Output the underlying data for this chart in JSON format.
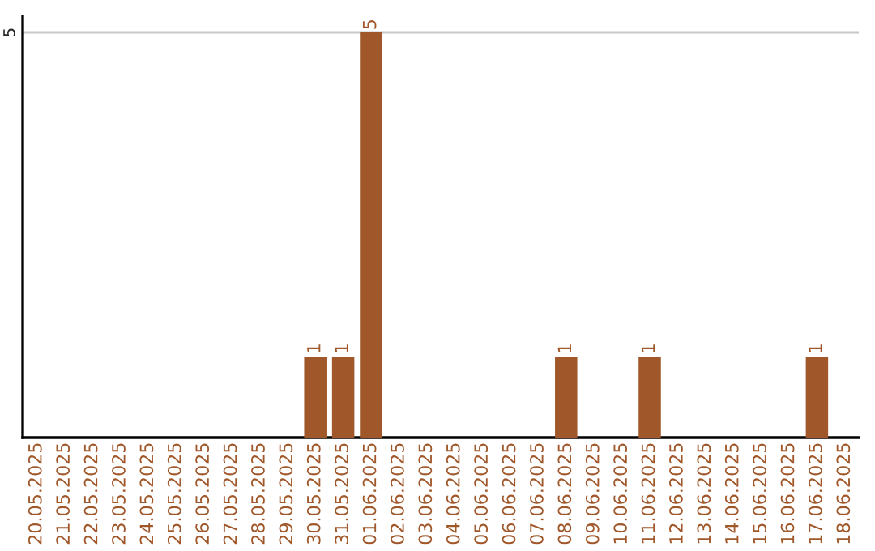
{
  "chart_data": {
    "type": "bar",
    "categories": [
      "20.05.2025",
      "21.05.2025",
      "22.05.2025",
      "23.05.2025",
      "24.05.2025",
      "25.05.2025",
      "26.05.2025",
      "27.05.2025",
      "28.05.2025",
      "29.05.2025",
      "30.05.2025",
      "31.05.2025",
      "01.06.2025",
      "02.06.2025",
      "03.06.2025",
      "04.06.2025",
      "05.06.2025",
      "06.06.2025",
      "07.06.2025",
      "08.06.2025",
      "09.06.2025",
      "10.06.2025",
      "11.06.2025",
      "12.06.2025",
      "13.06.2025",
      "14.06.2025",
      "15.06.2025",
      "16.06.2025",
      "17.06.2025",
      "18.06.2025"
    ],
    "values": [
      0,
      0,
      0,
      0,
      0,
      0,
      0,
      0,
      0,
      0,
      1,
      1,
      5,
      0,
      0,
      0,
      0,
      0,
      0,
      1,
      0,
      0,
      1,
      0,
      0,
      0,
      0,
      0,
      1,
      0
    ],
    "value_labels": [
      null,
      null,
      null,
      null,
      null,
      null,
      null,
      null,
      null,
      null,
      "1",
      "1",
      "5",
      null,
      null,
      null,
      null,
      null,
      null,
      "1",
      null,
      null,
      "1",
      null,
      null,
      null,
      null,
      null,
      "1",
      null
    ],
    "color": "#a0572a",
    "ylim": [
      0,
      5.2
    ],
    "yticks": [
      5
    ],
    "grid": "y",
    "legend": false
  }
}
